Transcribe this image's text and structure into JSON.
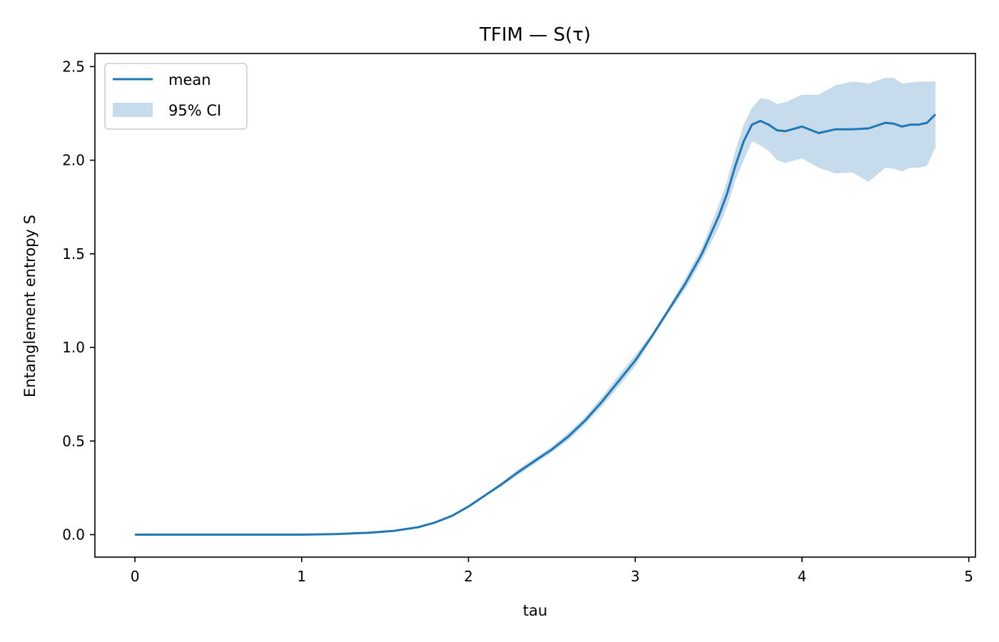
{
  "chart_data": {
    "type": "line",
    "title": "TFIM — S(τ)",
    "xlabel": "tau",
    "ylabel": "Entanglement entropy S",
    "xlim": [
      -0.24,
      5.04
    ],
    "ylim": [
      -0.12,
      2.57
    ],
    "xticks": [
      0,
      1,
      2,
      3,
      4,
      5
    ],
    "xtick_labels": [
      "0",
      "1",
      "2",
      "3",
      "4",
      "5"
    ],
    "yticks": [
      0.0,
      0.5,
      1.0,
      1.5,
      2.0,
      2.5
    ],
    "ytick_labels": [
      "0.0",
      "0.5",
      "1.0",
      "1.5",
      "2.0",
      "2.5"
    ],
    "grid": false,
    "legend": {
      "position": "top-left",
      "entries": [
        {
          "label": "mean",
          "kind": "line"
        },
        {
          "label": "95% CI",
          "kind": "band"
        }
      ]
    },
    "colors": {
      "mean": "#1f77b4",
      "band": "#c6dbec"
    },
    "series": [
      {
        "name": "mean",
        "x": [
          0,
          0.5,
          1.0,
          1.2,
          1.4,
          1.55,
          1.7,
          1.8,
          1.9,
          2.0,
          2.1,
          2.2,
          2.3,
          2.4,
          2.5,
          2.6,
          2.7,
          2.8,
          2.9,
          3.0,
          3.1,
          3.2,
          3.3,
          3.4,
          3.5,
          3.55,
          3.6,
          3.65,
          3.7,
          3.75,
          3.8,
          3.85,
          3.9,
          4.0,
          4.1,
          4.2,
          4.3,
          4.4,
          4.5,
          4.55,
          4.6,
          4.65,
          4.7,
          4.75,
          4.8
        ],
        "y": [
          0,
          0,
          0,
          0.003,
          0.01,
          0.02,
          0.04,
          0.065,
          0.1,
          0.15,
          0.21,
          0.27,
          0.335,
          0.395,
          0.455,
          0.525,
          0.61,
          0.71,
          0.82,
          0.93,
          1.06,
          1.2,
          1.34,
          1.5,
          1.7,
          1.82,
          1.97,
          2.1,
          2.19,
          2.21,
          2.19,
          2.16,
          2.155,
          2.18,
          2.145,
          2.165,
          2.165,
          2.17,
          2.2,
          2.195,
          2.18,
          2.19,
          2.19,
          2.2,
          2.245
        ]
      },
      {
        "name": "95% CI",
        "x": [
          0,
          0.5,
          1.0,
          1.2,
          1.4,
          1.55,
          1.7,
          1.8,
          1.9,
          2.0,
          2.1,
          2.2,
          2.3,
          2.4,
          2.5,
          2.6,
          2.7,
          2.8,
          2.9,
          3.0,
          3.1,
          3.2,
          3.3,
          3.4,
          3.5,
          3.55,
          3.6,
          3.65,
          3.7,
          3.75,
          3.8,
          3.85,
          3.9,
          4.0,
          4.1,
          4.2,
          4.3,
          4.4,
          4.5,
          4.55,
          4.6,
          4.65,
          4.7,
          4.75,
          4.8
        ],
        "upper": [
          0,
          0,
          0,
          0.004,
          0.012,
          0.023,
          0.045,
          0.07,
          0.105,
          0.155,
          0.215,
          0.28,
          0.35,
          0.41,
          0.47,
          0.545,
          0.63,
          0.735,
          0.85,
          0.96,
          1.075,
          1.215,
          1.37,
          1.535,
          1.76,
          1.89,
          2.05,
          2.19,
          2.28,
          2.33,
          2.325,
          2.3,
          2.31,
          2.35,
          2.35,
          2.4,
          2.42,
          2.41,
          2.44,
          2.44,
          2.41,
          2.415,
          2.42,
          2.42,
          2.42
        ],
        "lower": [
          0,
          0,
          0,
          0.002,
          0.008,
          0.017,
          0.035,
          0.06,
          0.095,
          0.145,
          0.205,
          0.26,
          0.32,
          0.38,
          0.44,
          0.505,
          0.59,
          0.685,
          0.79,
          0.9,
          1.045,
          1.185,
          1.31,
          1.465,
          1.64,
          1.75,
          1.89,
          2.0,
          2.1,
          2.08,
          2.05,
          2.0,
          1.985,
          2.01,
          1.96,
          1.93,
          1.935,
          1.885,
          1.96,
          1.955,
          1.94,
          1.96,
          1.96,
          1.97,
          2.07
        ]
      }
    ]
  }
}
